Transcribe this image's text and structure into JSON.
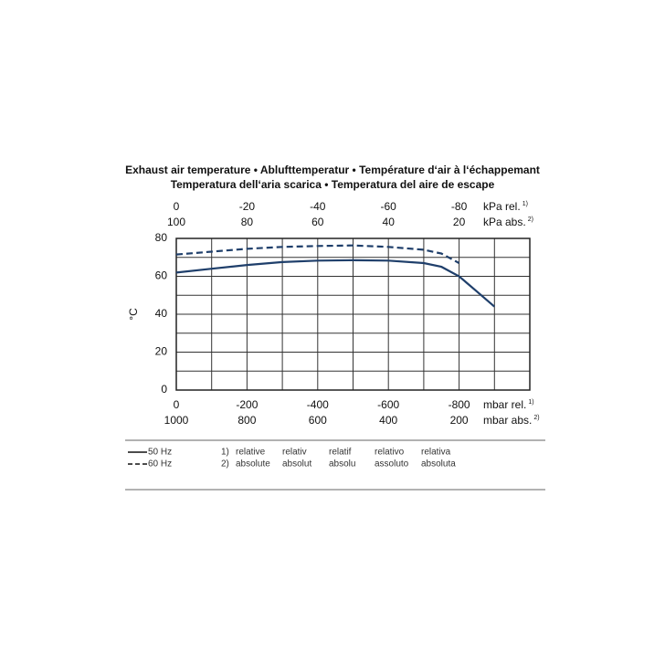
{
  "chart_data": {
    "type": "line",
    "title": "Exhaust air temperature • Ablufttemperatur • Température d‘air à l‘échappemant",
    "subtitle": "Temperatura dell‘aria scarica • Temperatura del aire de escape",
    "ylabel": "°C",
    "x": [
      0,
      -100,
      -200,
      -300,
      -400,
      -500,
      -600,
      -700,
      -750,
      -800,
      -850,
      -900
    ],
    "series": [
      {
        "name": "50 Hz",
        "color": "#1f3f6b",
        "dash": false,
        "values": [
          62,
          64,
          66,
          67.5,
          68.3,
          68.5,
          68.3,
          67,
          65,
          60,
          52,
          44
        ]
      },
      {
        "name": "60 Hz",
        "color": "#1f3f6b",
        "dash": true,
        "values": [
          71.5,
          73,
          74.5,
          75.5,
          76,
          76.3,
          75.5,
          74,
          72,
          67,
          null,
          null
        ]
      }
    ],
    "xlim": [
      0,
      -1000
    ],
    "xticks": [
      0,
      -200,
      -400,
      -600,
      -800
    ],
    "xlabel": "mbar rel.",
    "xlabel_note": "1)",
    "xgrid": [
      0,
      -100,
      -200,
      -300,
      -400,
      -500,
      -600,
      -700,
      -800,
      -900,
      -1000
    ],
    "ylim": [
      0,
      80
    ],
    "yticks": [
      0,
      20,
      40,
      60,
      80
    ],
    "ygrid": [
      0,
      10,
      20,
      30,
      40,
      50,
      60,
      70,
      80
    ],
    "mbar_abs": {
      "lim": [
        1000,
        0
      ],
      "ticks": [
        1000,
        800,
        600,
        400,
        200
      ],
      "label": "mbar abs.",
      "note": "2)"
    },
    "kpa_rel": {
      "lim": [
        0,
        -100
      ],
      "ticks": [
        0,
        -20,
        -40,
        -60,
        -80
      ],
      "label": "kPa rel.",
      "note": "1)"
    },
    "kpa_abs": {
      "lim": [
        100,
        0
      ],
      "ticks": [
        100,
        80,
        60,
        40,
        20
      ],
      "label": "kPa abs.",
      "note": "2)"
    },
    "notes": [
      {
        "marker": "1)",
        "words": [
          "relative",
          "relativ",
          "relatif",
          "relativo",
          "relativa"
        ]
      },
      {
        "marker": "2)",
        "words": [
          "absolute",
          "absolut",
          "absolu",
          "assoluto",
          "absoluta"
        ]
      }
    ]
  }
}
